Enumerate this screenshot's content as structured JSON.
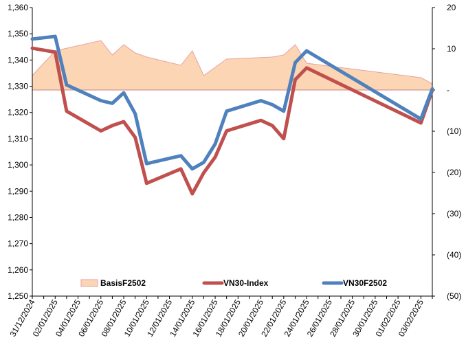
{
  "chart_data": {
    "type": "line",
    "x_tick_labels": [
      "31/12/2024",
      "02/01/2025",
      "04/01/2025",
      "06/01/2025",
      "08/01/2025",
      "10/01/2025",
      "12/01/2025",
      "14/01/2025",
      "16/01/2025",
      "18/01/2025",
      "20/01/2025",
      "22/01/2025",
      "24/01/2025",
      "26/01/2025",
      "28/01/2025",
      "30/01/2025",
      "01/02/2025",
      "03/02/2025"
    ],
    "x_range": [
      "2024-12-31",
      "2025-02-04"
    ],
    "y_left": {
      "range": [
        1250,
        1360
      ],
      "ticks": [
        1250,
        1260,
        1270,
        1280,
        1290,
        1300,
        1310,
        1320,
        1330,
        1340,
        1350,
        1360
      ],
      "tick_labels": [
        "1,250",
        "1,260",
        "1,270",
        "1,280",
        "1,290",
        "1,300",
        "1,310",
        "1,320",
        "1,330",
        "1,340",
        "1,350",
        "1,360"
      ]
    },
    "y_right": {
      "range": [
        -50,
        20
      ],
      "ticks": [
        20,
        10,
        0,
        -10,
        -20,
        -30,
        -40,
        -50
      ],
      "tick_labels": [
        "20",
        "10",
        "-",
        "(10)",
        "(20)",
        "(30)",
        "(40)",
        "(50)"
      ]
    },
    "legend_position": "bottom",
    "series": [
      {
        "name": "BasisF2502",
        "kind": "area",
        "axis": "right",
        "color": "#fcd5b5",
        "edge_color": "#e6a3a0",
        "points": [
          [
            "2024-12-31",
            3.5
          ],
          [
            "2025-01-02",
            9.5
          ],
          [
            "2025-01-06",
            12.0
          ],
          [
            "2025-01-07",
            8.5
          ],
          [
            "2025-01-08",
            11.0
          ],
          [
            "2025-01-09",
            9.0
          ],
          [
            "2025-01-10",
            8.0
          ],
          [
            "2025-01-13",
            6.0
          ],
          [
            "2025-01-14",
            9.5
          ],
          [
            "2025-01-15",
            3.5
          ],
          [
            "2025-01-17",
            7.5
          ],
          [
            "2025-01-21",
            8.0
          ],
          [
            "2025-01-22",
            8.5
          ],
          [
            "2025-01-23",
            11.0
          ],
          [
            "2025-01-24",
            6.5
          ],
          [
            "2025-02-03",
            3.0
          ],
          [
            "2025-02-04",
            1.5
          ]
        ]
      },
      {
        "name": "VN30-Index",
        "kind": "line",
        "axis": "left",
        "color": "#c0504d",
        "points": [
          [
            "2024-12-31",
            1344.5
          ],
          [
            "2025-01-02",
            1343.0
          ],
          [
            "2025-01-03",
            1320.5
          ],
          [
            "2025-01-06",
            1313.0
          ],
          [
            "2025-01-07",
            1315.0
          ],
          [
            "2025-01-08",
            1316.5
          ],
          [
            "2025-01-09",
            1310.5
          ],
          [
            "2025-01-10",
            1293.0
          ],
          [
            "2025-01-13",
            1298.5
          ],
          [
            "2025-01-14",
            1289.0
          ],
          [
            "2025-01-15",
            1297.0
          ],
          [
            "2025-01-16",
            1303.0
          ],
          [
            "2025-01-17",
            1313.0
          ],
          [
            "2025-01-20",
            1317.0
          ],
          [
            "2025-01-21",
            1315.0
          ],
          [
            "2025-01-22",
            1310.0
          ],
          [
            "2025-01-23",
            1332.5
          ],
          [
            "2025-01-24",
            1337.0
          ],
          [
            "2025-02-03",
            1316.0
          ],
          [
            "2025-02-04",
            1328.5
          ]
        ]
      },
      {
        "name": "VN30F2502",
        "kind": "line",
        "axis": "left",
        "color": "#4f81bd",
        "points": [
          [
            "2024-12-31",
            1348.0
          ],
          [
            "2025-01-02",
            1349.0
          ],
          [
            "2025-01-03",
            1330.5
          ],
          [
            "2025-01-06",
            1324.5
          ],
          [
            "2025-01-07",
            1323.5
          ],
          [
            "2025-01-08",
            1327.5
          ],
          [
            "2025-01-09",
            1319.5
          ],
          [
            "2025-01-10",
            1300.5
          ],
          [
            "2025-01-13",
            1303.5
          ],
          [
            "2025-01-14",
            1298.5
          ],
          [
            "2025-01-15",
            1301.0
          ],
          [
            "2025-01-16",
            1308.0
          ],
          [
            "2025-01-17",
            1320.5
          ],
          [
            "2025-01-20",
            1324.5
          ],
          [
            "2025-01-21",
            1323.0
          ],
          [
            "2025-01-22",
            1320.5
          ],
          [
            "2025-01-23",
            1339.0
          ],
          [
            "2025-01-24",
            1343.5
          ],
          [
            "2025-02-03",
            1317.5
          ],
          [
            "2025-02-04",
            1329.0
          ]
        ]
      }
    ]
  }
}
